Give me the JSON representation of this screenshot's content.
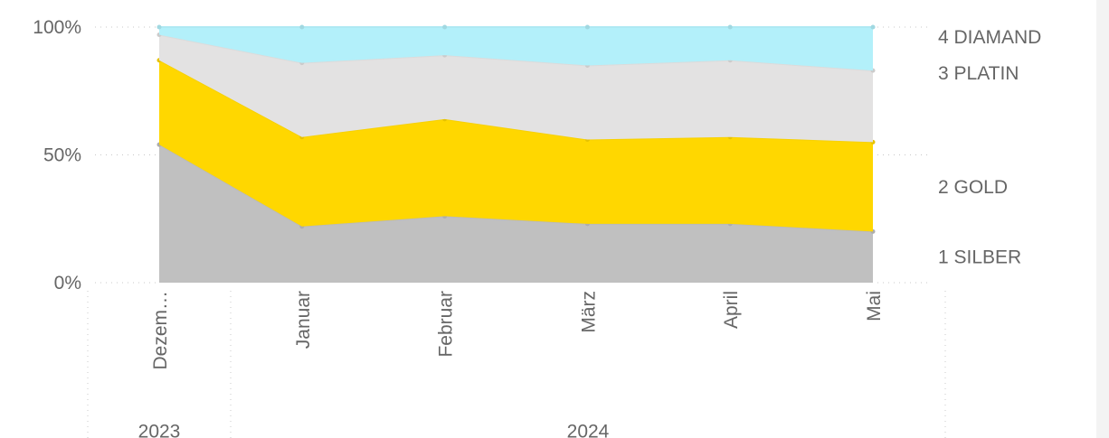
{
  "chart_data": {
    "type": "stacked_area_100",
    "categories": [
      "Dezem…",
      "Januar",
      "Februar",
      "März",
      "April",
      "Mai"
    ],
    "year_groups": [
      "2023",
      "2024"
    ],
    "series": [
      {
        "name": "1 SILBER",
        "color": "#c0c0c0",
        "values": [
          54,
          22,
          26,
          23,
          23,
          20
        ]
      },
      {
        "name": "2 GOLD",
        "color": "#ffd700",
        "values": [
          33,
          35,
          38,
          33,
          34,
          35
        ]
      },
      {
        "name": "3 PLATIN",
        "color": "#e3e2e2",
        "values": [
          10,
          29,
          25,
          29,
          30,
          28
        ]
      },
      {
        "name": "4 DIAMAND",
        "color": "#b3f0fa",
        "values": [
          3,
          14,
          11,
          15,
          13,
          17
        ]
      }
    ],
    "ylim": [
      0,
      100
    ],
    "yticks": [
      {
        "value": 0,
        "label": "0%"
      },
      {
        "value": 50,
        "label": "50%"
      },
      {
        "value": 100,
        "label": "100%"
      }
    ],
    "grid": true
  }
}
